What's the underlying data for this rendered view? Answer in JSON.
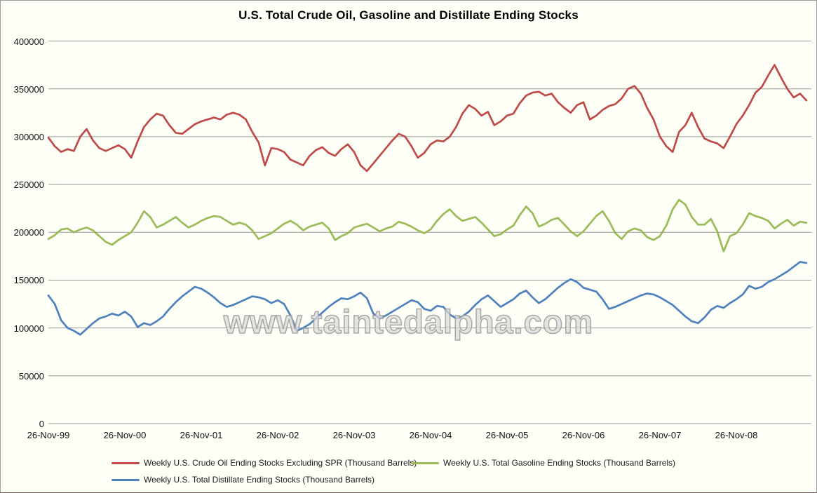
{
  "watermark": "www.taintedalpha.com",
  "legend": {
    "items": [
      {
        "label": "Weekly U.S. Crude Oil Ending Stocks Excluding SPR (Thousand Barrels)",
        "color": "#BE4B48"
      },
      {
        "label": "Weekly U.S. Total Gasoline Ending Stocks (Thousand Barrels)",
        "color": "#9BBB59"
      },
      {
        "label": "Weekly U.S. Total Distillate Ending Stocks (Thousand Barrels)",
        "color": "#4F81BD"
      }
    ]
  },
  "chart_data": {
    "type": "line",
    "title": "U.S. Total Crude Oil, Gasoline and Distillate Ending Stocks",
    "xlabel": "",
    "ylabel": "",
    "ylim": [
      0,
      400000
    ],
    "y_ticks": [
      0,
      50000,
      100000,
      150000,
      200000,
      250000,
      300000,
      350000,
      400000
    ],
    "x_tick_labels": [
      "26-Nov-99",
      "26-Nov-00",
      "26-Nov-01",
      "26-Nov-02",
      "26-Nov-03",
      "26-Nov-04",
      "26-Nov-05",
      "26-Nov-06",
      "26-Nov-07",
      "26-Nov-08"
    ],
    "grid": "horizontal",
    "legend_position": "bottom",
    "sampling_note": "weekly lines read off the chart at monthly resolution, Nov-1999 through Oct-2009",
    "series": [
      {
        "name": "Weekly U.S. Crude Oil Ending Stocks Excluding SPR (Thousand Barrels)",
        "color": "#BE4B48",
        "values": [
          299000,
          290000,
          284000,
          287000,
          285000,
          300000,
          308000,
          296000,
          288000,
          285000,
          288000,
          291000,
          287000,
          278000,
          295000,
          310000,
          318000,
          324000,
          322000,
          312000,
          304000,
          303000,
          308000,
          313000,
          316000,
          318000,
          320000,
          318000,
          323000,
          325000,
          323000,
          318000,
          305000,
          294000,
          270000,
          288000,
          287000,
          284000,
          276000,
          273000,
          270000,
          280000,
          286000,
          289000,
          283000,
          280000,
          287000,
          292000,
          284000,
          270000,
          264000,
          272000,
          280000,
          288000,
          296000,
          303000,
          300000,
          290000,
          278000,
          283000,
          292000,
          296000,
          295000,
          300000,
          310000,
          324000,
          333000,
          329000,
          322000,
          326000,
          312000,
          316000,
          322000,
          324000,
          335000,
          343000,
          346000,
          347000,
          343000,
          345000,
          336000,
          330000,
          325000,
          333000,
          336000,
          318000,
          322000,
          328000,
          332000,
          334000,
          340000,
          350000,
          353000,
          345000,
          330000,
          318000,
          300000,
          290000,
          284000,
          305000,
          312000,
          325000,
          310000,
          298000,
          295000,
          293000,
          288000,
          300000,
          313000,
          322000,
          333000,
          346000,
          352000,
          364000,
          375000,
          362000,
          350000,
          341000,
          345000,
          338000
        ]
      },
      {
        "name": "Weekly U.S. Total Gasoline Ending Stocks (Thousand Barrels)",
        "color": "#9BBB59",
        "values": [
          193000,
          197000,
          203000,
          204000,
          200000,
          203000,
          205000,
          202000,
          196000,
          190000,
          187000,
          192000,
          196000,
          200000,
          210000,
          222000,
          216000,
          205000,
          208000,
          212000,
          216000,
          210000,
          205000,
          208000,
          212000,
          215000,
          217000,
          216000,
          212000,
          208000,
          210000,
          208000,
          202000,
          193000,
          196000,
          199000,
          204000,
          209000,
          212000,
          208000,
          202000,
          206000,
          208000,
          210000,
          204000,
          192000,
          196000,
          199000,
          205000,
          207000,
          209000,
          205000,
          201000,
          204000,
          206000,
          211000,
          209000,
          206000,
          202000,
          199000,
          203000,
          212000,
          219000,
          224000,
          217000,
          212000,
          214000,
          216000,
          210000,
          203000,
          196000,
          198000,
          203000,
          207000,
          218000,
          227000,
          220000,
          206000,
          209000,
          213000,
          215000,
          208000,
          201000,
          196000,
          201000,
          209000,
          217000,
          222000,
          212000,
          199000,
          193000,
          201000,
          204000,
          202000,
          195000,
          192000,
          196000,
          207000,
          224000,
          234000,
          229000,
          216000,
          208000,
          208000,
          214000,
          201000,
          180000,
          196000,
          199000,
          208000,
          220000,
          217000,
          215000,
          212000,
          204000,
          209000,
          213000,
          207000,
          211000,
          210000
        ]
      },
      {
        "name": "Weekly U.S. Total Distillate Ending Stocks (Thousand Barrels)",
        "color": "#4F81BD",
        "values": [
          134000,
          125000,
          108000,
          100000,
          97000,
          93000,
          99000,
          105000,
          110000,
          112000,
          115000,
          113000,
          117000,
          112000,
          101000,
          105000,
          103000,
          107000,
          112000,
          120000,
          127000,
          133000,
          138000,
          143000,
          141000,
          137000,
          132000,
          126000,
          122000,
          124000,
          127000,
          130000,
          133000,
          132000,
          130000,
          126000,
          129000,
          125000,
          113000,
          97000,
          100000,
          104000,
          110000,
          116000,
          122000,
          127000,
          131000,
          130000,
          133000,
          137000,
          131000,
          115000,
          110000,
          113000,
          117000,
          121000,
          125000,
          129000,
          127000,
          120000,
          118000,
          123000,
          122000,
          114000,
          110000,
          112000,
          117000,
          124000,
          130000,
          134000,
          128000,
          122000,
          126000,
          130000,
          136000,
          139000,
          132000,
          126000,
          130000,
          136000,
          142000,
          147000,
          151000,
          148000,
          142000,
          140000,
          138000,
          130000,
          120000,
          122000,
          125000,
          128000,
          131000,
          134000,
          136000,
          135000,
          132000,
          128000,
          124000,
          118000,
          112000,
          107000,
          105000,
          111000,
          119000,
          123000,
          121000,
          126000,
          130000,
          135000,
          144000,
          141000,
          143000,
          148000,
          151000,
          155000,
          159000,
          164000,
          169000,
          168000
        ]
      }
    ]
  }
}
